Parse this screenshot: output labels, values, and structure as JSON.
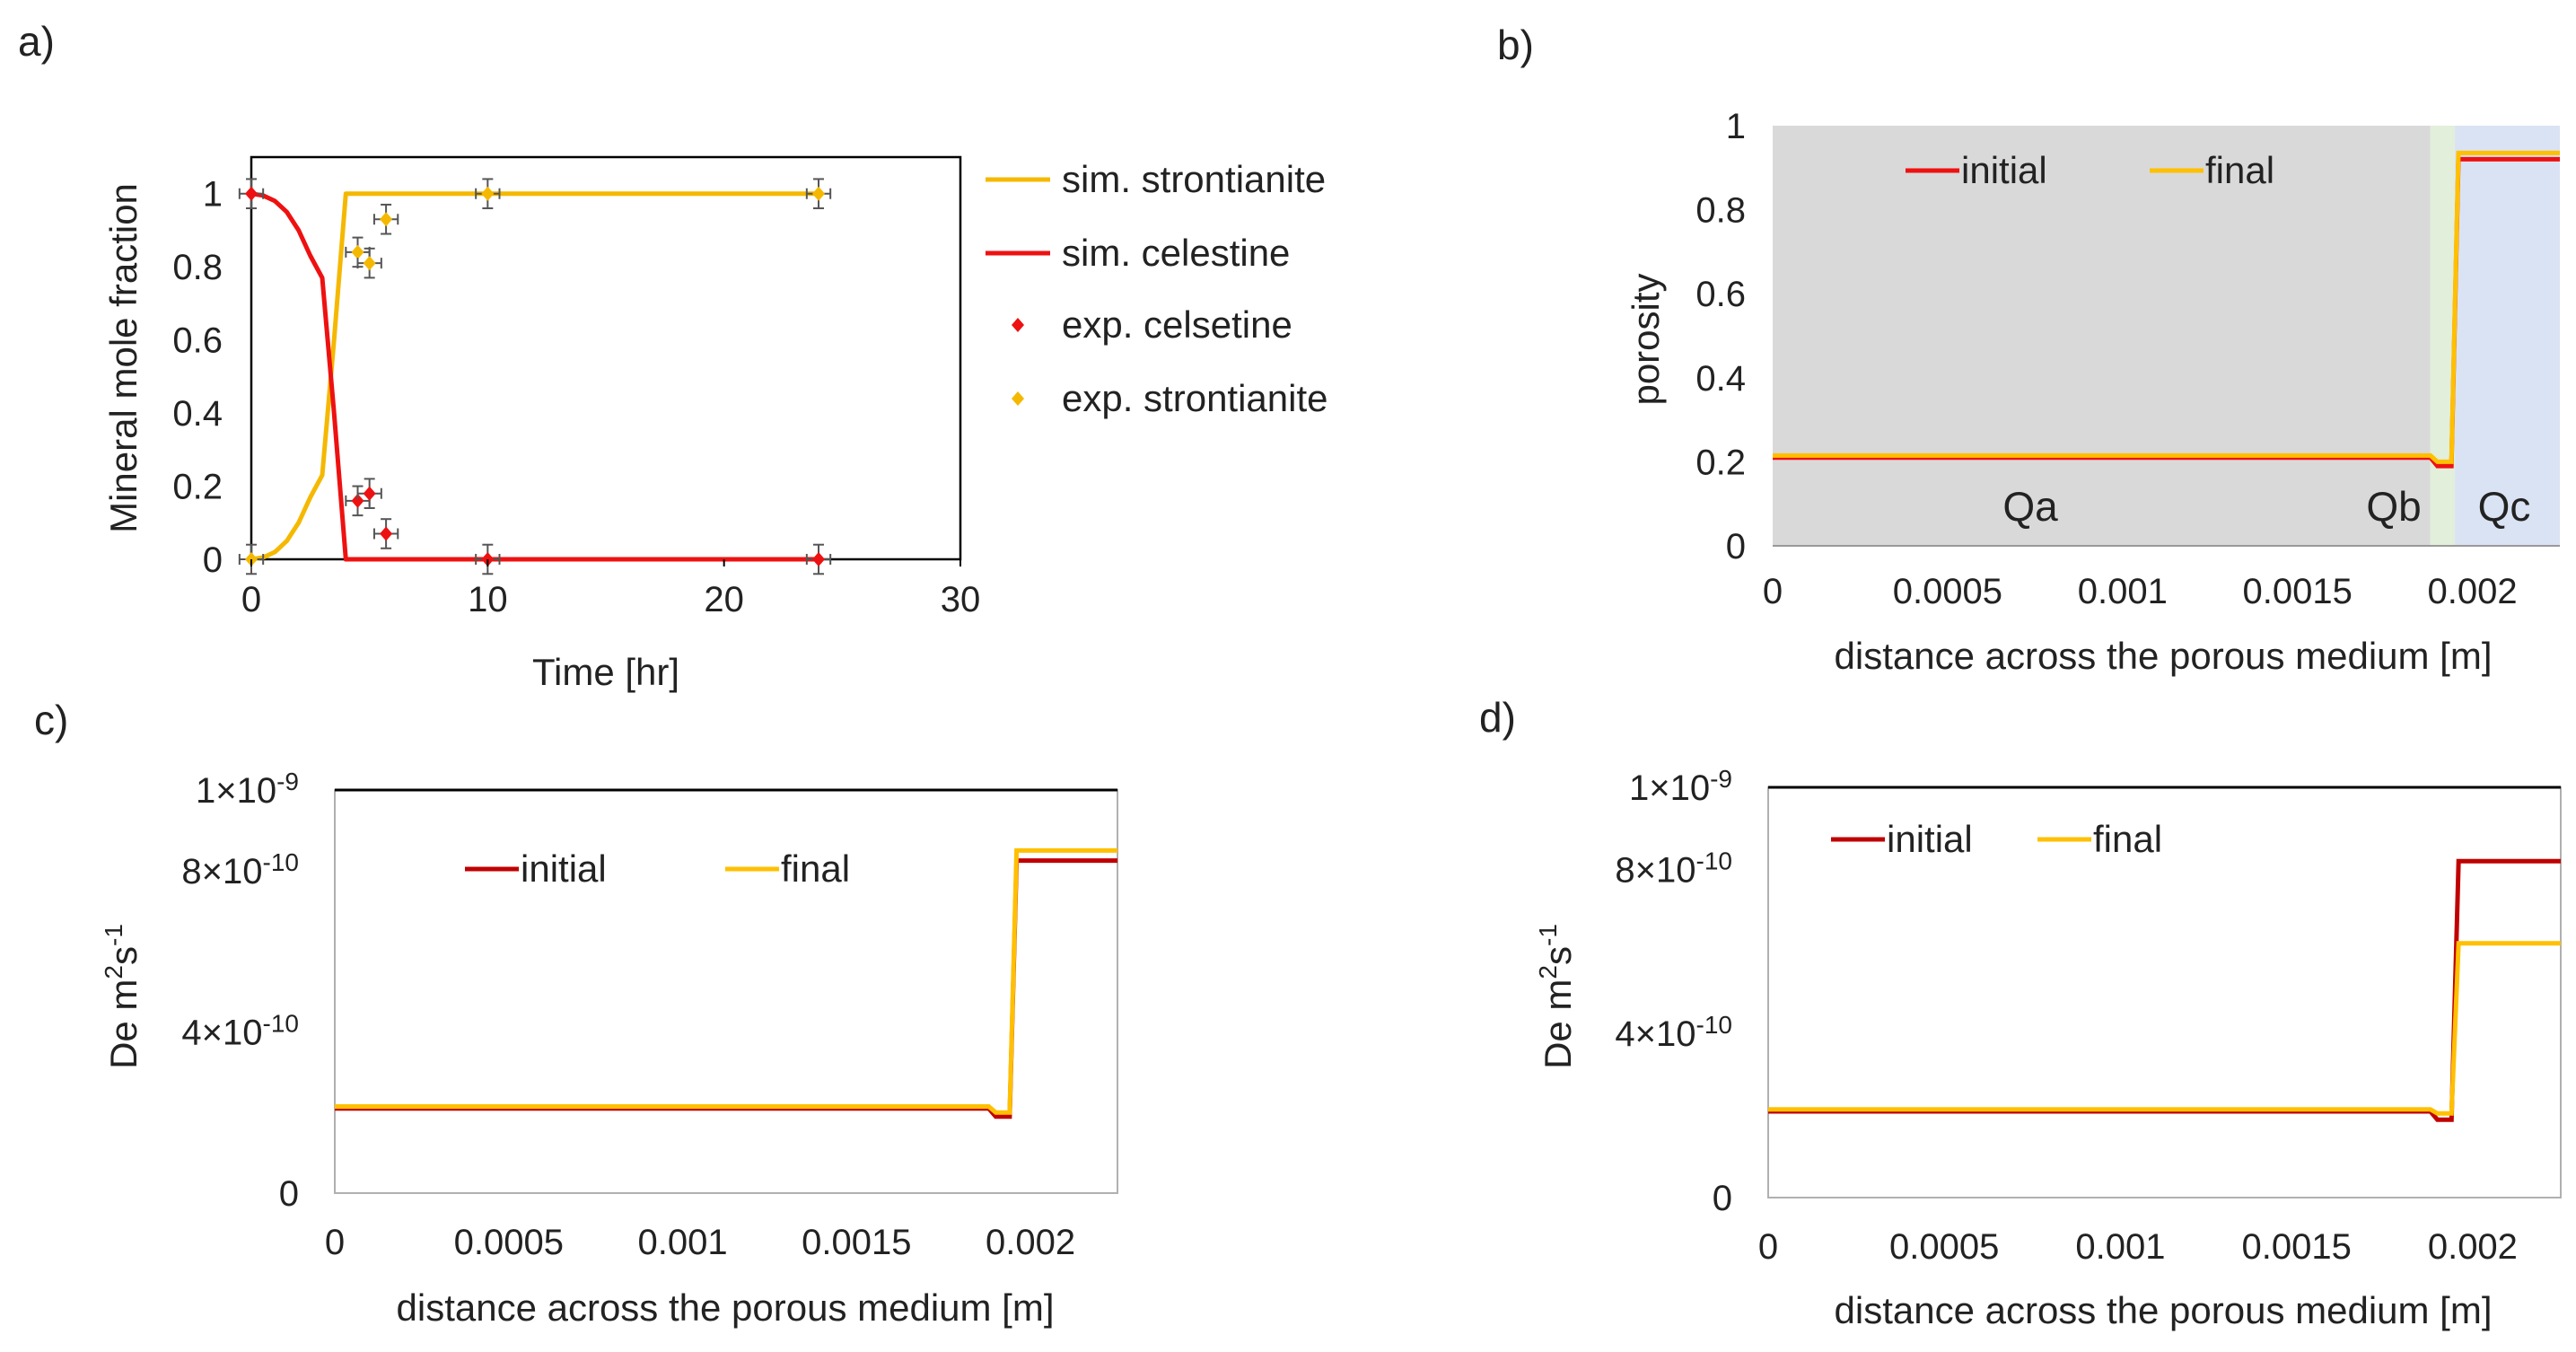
{
  "figure_labels": [
    "a)",
    "b)",
    "c)",
    "d)"
  ],
  "colors": {
    "strontianite": "#F5B800",
    "celestine": "#EE1111",
    "initial_b": "#EE1111",
    "initial_cd": "#C00000",
    "final": "#FFC000",
    "zone_qa": "#D9D9D9",
    "zone_qb": "#E2EFDA",
    "zone_qc": "#DAE3F3",
    "errorbar": "#555555",
    "frame": "#000000"
  },
  "chart_data": [
    {
      "id": "a",
      "type": "line",
      "title": "",
      "xlabel": "Time [hr]",
      "ylabel": "Mineral mole fraction",
      "xlim": [
        0,
        30
      ],
      "ylim": [
        0,
        1.1
      ],
      "xticks": [
        0,
        10,
        20,
        30
      ],
      "yticks": [
        0,
        0.2,
        0.4,
        0.6,
        0.8,
        1
      ],
      "legend": [
        "sim. strontianite",
        "sim. celestine",
        "exp. celsetine",
        "exp. strontianite"
      ],
      "series": [
        {
          "name": "sim. strontianite",
          "kind": "line",
          "x": [
            0,
            0.5,
            1,
            1.5,
            2,
            2.5,
            3,
            3.5,
            4,
            5,
            10,
            15,
            20,
            24
          ],
          "y": [
            0,
            0.005,
            0.02,
            0.05,
            0.1,
            0.17,
            0.23,
            0.6,
            1,
            1,
            1,
            1,
            1,
            1
          ]
        },
        {
          "name": "sim. celestine",
          "kind": "line",
          "x": [
            0,
            0.5,
            1,
            1.5,
            2,
            2.5,
            3,
            3.5,
            4,
            5,
            10,
            15,
            20,
            24
          ],
          "y": [
            1,
            0.995,
            0.98,
            0.95,
            0.9,
            0.83,
            0.77,
            0.4,
            0,
            0,
            0,
            0,
            0,
            0
          ]
        },
        {
          "name": "exp. celsetine",
          "kind": "scatter",
          "x": [
            0,
            4.5,
            5,
            5.7,
            10,
            24
          ],
          "y": [
            1,
            0.16,
            0.18,
            0.07,
            0,
            0
          ],
          "xerr": 0.5,
          "yerr": 0.04
        },
        {
          "name": "exp. strontianite",
          "kind": "scatter",
          "x": [
            0,
            4.5,
            5,
            5.7,
            10,
            24
          ],
          "y": [
            0,
            0.84,
            0.81,
            0.93,
            1,
            1
          ],
          "xerr": 0.5,
          "yerr": 0.04
        }
      ]
    },
    {
      "id": "b",
      "type": "line",
      "title": "",
      "xlabel": "distance across the porous medium [m]",
      "ylabel": "porosity",
      "xlim": [
        0,
        0.00225
      ],
      "ylim": [
        0,
        1
      ],
      "xticks": [
        0,
        0.0005,
        0.001,
        0.0015,
        0.002
      ],
      "xticklabels": [
        "0",
        "0.0005",
        "0.001",
        "0.0015",
        "0.002"
      ],
      "yticks": [
        0,
        0.2,
        0.4,
        0.6,
        0.8,
        1
      ],
      "legend": [
        "initial",
        "final"
      ],
      "zones": [
        {
          "label": "Qa",
          "from": 0,
          "to": 0.00188
        },
        {
          "label": "Qb",
          "from": 0.00188,
          "to": 0.00195
        },
        {
          "label": "Qc",
          "from": 0.00195,
          "to": 0.00225
        }
      ],
      "series": [
        {
          "name": "initial",
          "x": [
            0,
            0.00188,
            0.0019,
            0.00194,
            0.00196,
            0.00225
          ],
          "y": [
            0.21,
            0.21,
            0.19,
            0.19,
            0.92,
            0.92
          ]
        },
        {
          "name": "final",
          "x": [
            0,
            0.00188,
            0.0019,
            0.00194,
            0.00196,
            0.00225
          ],
          "y": [
            0.215,
            0.215,
            0.2,
            0.2,
            0.935,
            0.935
          ]
        }
      ]
    },
    {
      "id": "c",
      "type": "line",
      "title": "",
      "xlabel": "distance across the porous medium [m]",
      "ylabel": "De m²s⁻¹",
      "xlim": [
        0,
        0.00225
      ],
      "ylim": [
        0,
        1e-09
      ],
      "xticks": [
        0,
        0.0005,
        0.001,
        0.0015,
        0.002
      ],
      "xticklabels": [
        "0",
        "0.0005",
        "0.001",
        "0.0015",
        "0.002"
      ],
      "yticks": [
        0,
        4e-10,
        8e-10,
        1e-09
      ],
      "yticklabels": [
        "0",
        "4×10-10",
        "8×10-10",
        "1×10-9"
      ],
      "legend": [
        "initial",
        "final"
      ],
      "series": [
        {
          "name": "initial",
          "x": [
            0,
            0.00188,
            0.0019,
            0.00194,
            0.00196,
            0.00225
          ],
          "y": [
            2.1e-10,
            2.1e-10,
            1.9e-10,
            1.9e-10,
            8.25e-10,
            8.25e-10
          ]
        },
        {
          "name": "final",
          "x": [
            0,
            0.00188,
            0.0019,
            0.00194,
            0.00196,
            0.00225
          ],
          "y": [
            2.15e-10,
            2.15e-10,
            2e-10,
            2e-10,
            8.5e-10,
            8.5e-10
          ]
        }
      ]
    },
    {
      "id": "d",
      "type": "line",
      "title": "",
      "xlabel": "distance across the porous medium [m]",
      "ylabel": "De m²s⁻¹",
      "xlim": [
        0,
        0.00225
      ],
      "ylim": [
        0,
        1e-09
      ],
      "xticks": [
        0,
        0.0005,
        0.001,
        0.0015,
        0.002
      ],
      "xticklabels": [
        "0",
        "0.0005",
        "0.001",
        "0.0015",
        "0.002"
      ],
      "yticks": [
        0,
        4e-10,
        8e-10,
        1e-09
      ],
      "yticklabels": [
        "0",
        "4×10-10",
        "8×10-10",
        "1×10-9"
      ],
      "legend": [
        "initial",
        "final"
      ],
      "series": [
        {
          "name": "initial",
          "x": [
            0,
            0.00188,
            0.0019,
            0.00194,
            0.00196,
            0.00225
          ],
          "y": [
            2.1e-10,
            2.1e-10,
            1.9e-10,
            1.9e-10,
            8.2e-10,
            8.2e-10
          ]
        },
        {
          "name": "final",
          "x": [
            0,
            0.00188,
            0.0019,
            0.00194,
            0.00196,
            0.00225
          ],
          "y": [
            2.15e-10,
            2.15e-10,
            2.05e-10,
            2.05e-10,
            6.2e-10,
            6.2e-10
          ]
        }
      ]
    }
  ]
}
